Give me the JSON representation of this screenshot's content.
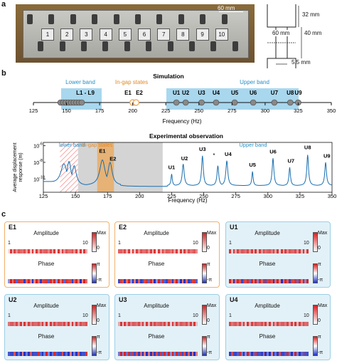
{
  "panel_a": {
    "label": "a",
    "scale_label": "60 mm",
    "cell_numbers": [
      "1",
      "2",
      "3",
      "4",
      "5",
      "6",
      "7",
      "8",
      "9",
      "10"
    ],
    "dim_32": "32 mm",
    "dim_60": "60 mm",
    "dim_40": "40 mm",
    "dim_55": "5.5 mm"
  },
  "panel_b": {
    "label": "b",
    "sim": {
      "title": "Simulation",
      "lower_band": "Lower band",
      "in_gap": "In-gap states",
      "upper_band": "Upper band",
      "l_label": "L1 - L9",
      "e1": "E1",
      "e2": "E2",
      "u_labels": [
        "U1",
        "U2",
        "U3",
        "U4",
        "U5",
        "U6",
        "U7",
        "U8",
        "U9"
      ],
      "x_ticks": [
        "125",
        "150",
        "175",
        "200",
        "225",
        "250",
        "275",
        "300",
        "325",
        "350"
      ],
      "xlabel": "Frequency (Hz)",
      "lower_modes": [
        145.5,
        147.5,
        149.5,
        151.5,
        153.5,
        155.5,
        157.5,
        159.5,
        161.5
      ],
      "ingap_modes": [
        200,
        202.5
      ],
      "upper_modes": [
        233,
        240,
        252,
        263,
        277,
        291,
        307,
        319,
        325
      ]
    },
    "exp": {
      "title": "Experimental observation",
      "lower_band": "lower band",
      "in_gap": "In-gap states",
      "upper_band": "Upper band",
      "ylabel_1": "Average displacement",
      "ylabel_2": "response (m)",
      "y_ticks": [
        "10",
        "10",
        "10"
      ],
      "y_exps": [
        "-6",
        "-8",
        "-10"
      ],
      "x_ticks": [
        "125",
        "150",
        "175",
        "200",
        "225",
        "250",
        "275",
        "300",
        "325",
        "350"
      ],
      "xlabel": "Frequency (Hz)",
      "peaks": [
        "E1",
        "E2",
        "U1",
        "U2",
        "U3",
        "U4",
        "U5",
        "U6",
        "U7",
        "U8",
        "U9"
      ],
      "star": "*"
    }
  },
  "panel_c": {
    "label": "c",
    "amplitude_label": "Amplitude",
    "phase_label": "Phase",
    "n_start": "1",
    "n_end": "10",
    "max_label": "Max",
    "zero_label": "0",
    "pi_label": "π",
    "neg_pi_label": "-π",
    "modes": [
      {
        "name": "E1",
        "style": "orange"
      },
      {
        "name": "E2",
        "style": "orange"
      },
      {
        "name": "U1",
        "style": "blue"
      },
      {
        "name": "U2",
        "style": "blue"
      },
      {
        "name": "U3",
        "style": "blue"
      },
      {
        "name": "U4",
        "style": "blue"
      }
    ]
  },
  "colors": {
    "lower_band": "#a8d7ee",
    "in_gap": "#f0a24a",
    "upper_band": "#a8d7ee",
    "curve": "#1a6fb0",
    "red": "#d62020",
    "blue": "#2030c0"
  }
}
